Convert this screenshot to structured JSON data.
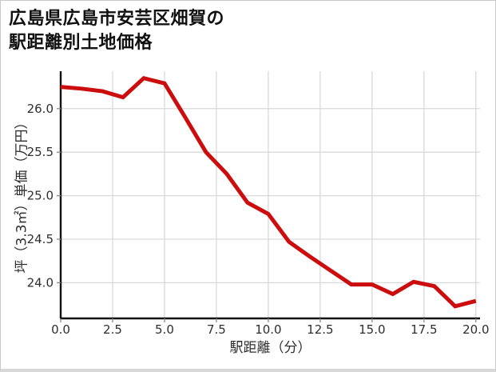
{
  "header": {
    "title_line1": "広島県広島市安芸区畑賀の",
    "title_line2": "駅距離別土地価格"
  },
  "chart_data": {
    "type": "line",
    "title": "広島県広島市安芸区畑賀の駅距離別土地価格",
    "xlabel": "駅距離（分）",
    "ylabel": "坪（3.3㎡）単価（万円）",
    "x": [
      0,
      1,
      2,
      3,
      4,
      5,
      6,
      7,
      8,
      9,
      10,
      11,
      12,
      13,
      14,
      15,
      16,
      17,
      18,
      19,
      20
    ],
    "y": [
      26.25,
      26.23,
      26.2,
      26.13,
      26.35,
      26.29,
      25.9,
      25.5,
      25.25,
      24.92,
      24.79,
      24.47,
      24.3,
      24.14,
      23.98,
      23.98,
      23.87,
      24.01,
      23.96,
      23.73,
      23.79
    ],
    "x_tick_labels": [
      "0.0",
      "2.5",
      "5.0",
      "7.5",
      "10.0",
      "12.5",
      "15.0",
      "17.5",
      "20.0"
    ],
    "y_tick_labels": [
      "24.0",
      "24.5",
      "25.0",
      "25.5",
      "26.0"
    ],
    "xlim": [
      0,
      20.2
    ],
    "ylim": [
      23.59,
      26.43
    ],
    "grid": true,
    "legend": false
  },
  "colors": {
    "line": "#cc0d0d",
    "grid": "#d9d9d9",
    "spine": "#111111",
    "tick": "#8a8a8a",
    "text": "#2e2e2e"
  }
}
